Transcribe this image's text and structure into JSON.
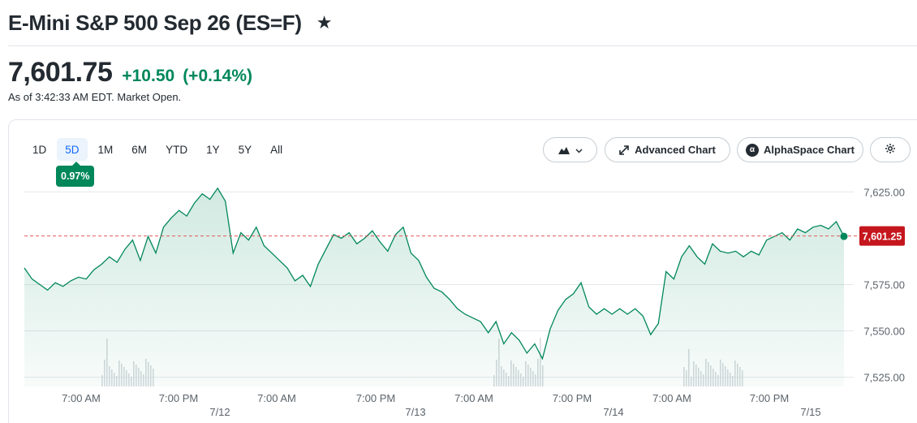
{
  "header": {
    "title": "E-Mini S&P 500 Sep 26 (ES=F)",
    "star_icon": "star-icon"
  },
  "quote": {
    "price": "7,601.75",
    "change": "+10.50",
    "change_percent": "(+0.14%)",
    "as_of": "As of 3:42:33 AM EDT. Market Open.",
    "color_up": "#00875a"
  },
  "toolbar": {
    "ranges": [
      {
        "label": "1D",
        "active": false
      },
      {
        "label": "5D",
        "active": true
      },
      {
        "label": "1M",
        "active": false
      },
      {
        "label": "6M",
        "active": false
      },
      {
        "label": "YTD",
        "active": false
      },
      {
        "label": "1Y",
        "active": false
      },
      {
        "label": "5Y",
        "active": false
      },
      {
        "label": "All",
        "active": false
      }
    ],
    "range_change_badge": "0.97%",
    "chart_type_icon": "mountain-chart-icon",
    "advanced_chart_label": "Advanced Chart",
    "alphaspace_chart_label": "AlphaSpace Chart",
    "alphaspace_logo": "α",
    "settings_icon": "gear-icon"
  },
  "chart_data": {
    "type": "area",
    "title": "",
    "xlabel": "",
    "ylabel": "",
    "ylim": [
      7520,
      7630
    ],
    "y_ticks": [
      "7,625.00",
      "7,600.00",
      "7,575.00",
      "7,550.00",
      "7,525.00"
    ],
    "y_tick_values": [
      7625,
      7600,
      7575,
      7550,
      7525
    ],
    "time_labels": [
      "7:00 AM",
      "7:00 PM",
      "7:00 AM",
      "7:00 PM",
      "7:00 AM",
      "7:00 PM",
      "7:00 AM",
      "7:00 PM"
    ],
    "date_labels": [
      "7/12",
      "7/13",
      "7/14",
      "7/15"
    ],
    "current_price_label": "7,601.25",
    "current_price": 7601.25,
    "line_color": "#00875a",
    "reference_line_color": "#e35a5a",
    "grid": true,
    "series": [
      {
        "values": [
          7584,
          7578,
          7575,
          7572,
          7576,
          7574,
          7577,
          7579,
          7578,
          7583,
          7586,
          7590,
          7587,
          7594,
          7599,
          7588,
          7601,
          7592,
          7606,
          7611,
          7615,
          7612,
          7619,
          7624,
          7621,
          7627,
          7620,
          7592,
          7603,
          7599,
          7606,
          7596,
          7592,
          7588,
          7584,
          7577,
          7580,
          7574,
          7586,
          7594,
          7602,
          7600,
          7603,
          7597,
          7600,
          7604,
          7598,
          7593,
          7602,
          7606,
          7592,
          7588,
          7579,
          7573,
          7571,
          7567,
          7562,
          7559,
          7557,
          7555,
          7549,
          7555,
          7543,
          7549,
          7545,
          7538,
          7543,
          7535,
          7551,
          7561,
          7567,
          7570,
          7576,
          7563,
          7559,
          7562,
          7559,
          7562,
          7559,
          7562,
          7558,
          7548,
          7554,
          7582,
          7578,
          7590,
          7596,
          7590,
          7586,
          7597,
          7593,
          7592,
          7593,
          7590,
          7593,
          7591,
          7599,
          7601,
          7603,
          7599,
          7605,
          7603,
          7606,
          7607,
          7605,
          7609,
          7601
        ]
      }
    ]
  }
}
